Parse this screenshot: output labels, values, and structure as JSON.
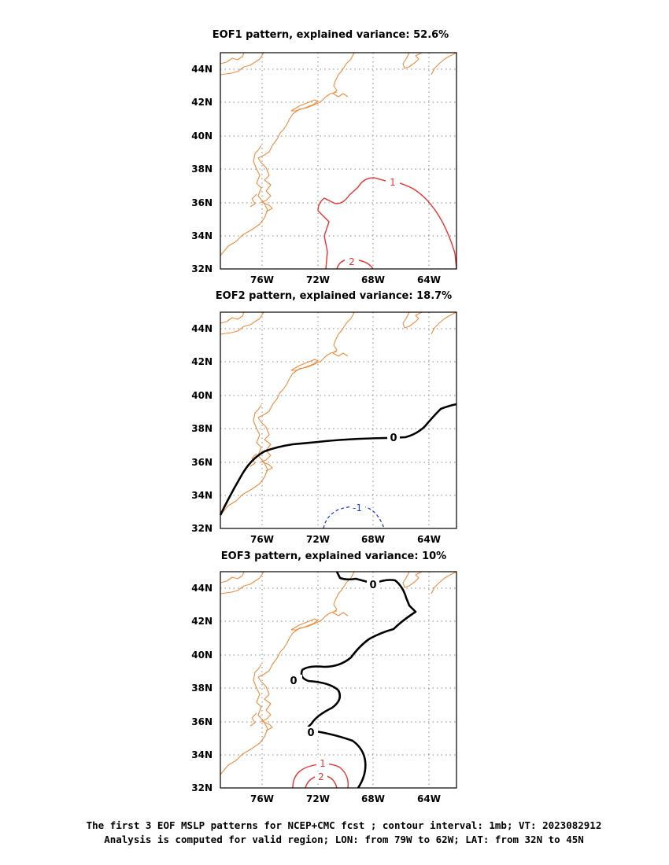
{
  "panels": [
    {
      "title": "EOF1 pattern, explained variance: 52.6%",
      "contour_labels": [
        "1",
        "2"
      ]
    },
    {
      "title": "EOF2 pattern, explained variance: 18.7%",
      "contour_labels": [
        "0",
        "-1"
      ]
    },
    {
      "title": "EOF3 pattern, explained variance: 10%",
      "contour_labels": [
        "0",
        "0",
        "0",
        "1",
        "2"
      ]
    }
  ],
  "lat_ticks": [
    "44N",
    "42N",
    "40N",
    "38N",
    "36N",
    "34N",
    "32N"
  ],
  "lon_ticks": [
    "76W",
    "72W",
    "68W",
    "64W"
  ],
  "caption": {
    "line1": "The first 3 EOF MSLP patterns for NCEP+CMC fcst ; contour interval: 1mb; VT: 2023082912",
    "line2": "Analysis is computed for valid region; LON: from 79W to 62W; LAT: from 32N to 45N"
  },
  "colors": {
    "coastline": "#f08c3c",
    "positive_contour": "#ee3333",
    "negative_contour": "#2244dd",
    "zero_contour": "#000000"
  }
}
